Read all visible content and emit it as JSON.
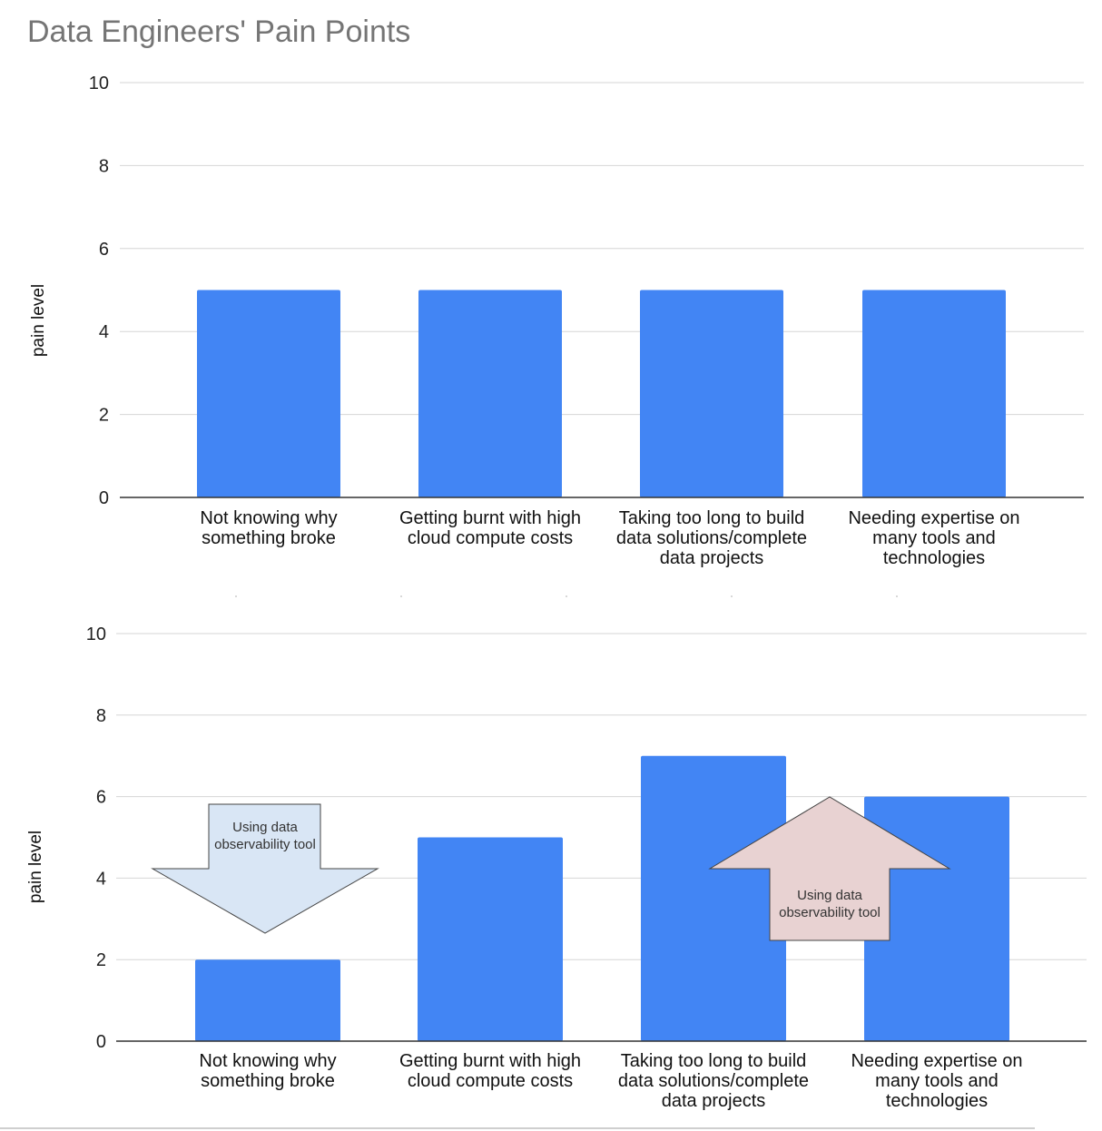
{
  "title": "Data Engineers' Pain Points",
  "chart_data": [
    {
      "type": "bar",
      "categories": [
        [
          "Not knowing why",
          "something broke"
        ],
        [
          "Getting burnt with high",
          "cloud compute costs"
        ],
        [
          "Taking too long to build",
          "data solutions/complete",
          "data projects"
        ],
        [
          "Needing expertise on",
          "many tools and",
          "technologies"
        ]
      ],
      "values": [
        5,
        5,
        5,
        5
      ],
      "ylabel": "pain level",
      "ylim": [
        0,
        10
      ],
      "yticks": [
        0,
        2,
        4,
        6,
        8,
        10
      ],
      "grid": true,
      "color": "#4285f4"
    },
    {
      "type": "bar",
      "categories": [
        [
          "Not knowing why",
          "something broke"
        ],
        [
          "Getting burnt with high",
          "cloud compute costs"
        ],
        [
          "Taking too long to build",
          "data solutions/complete",
          "data projects"
        ],
        [
          "Needing expertise on",
          "many tools and",
          "technologies"
        ]
      ],
      "values": [
        2,
        5,
        7,
        6
      ],
      "ylabel": "pain level",
      "ylim": [
        0,
        10
      ],
      "yticks": [
        0,
        2,
        4,
        6,
        8,
        10
      ],
      "grid": true,
      "color": "#4285f4",
      "annotations": [
        {
          "direction": "down",
          "lines": [
            "Using data",
            "observability tool"
          ],
          "fill": "#d9e6f5"
        },
        {
          "direction": "up",
          "lines": [
            "Using data",
            "observability tool"
          ],
          "fill": "#e8d2d2"
        }
      ]
    }
  ]
}
